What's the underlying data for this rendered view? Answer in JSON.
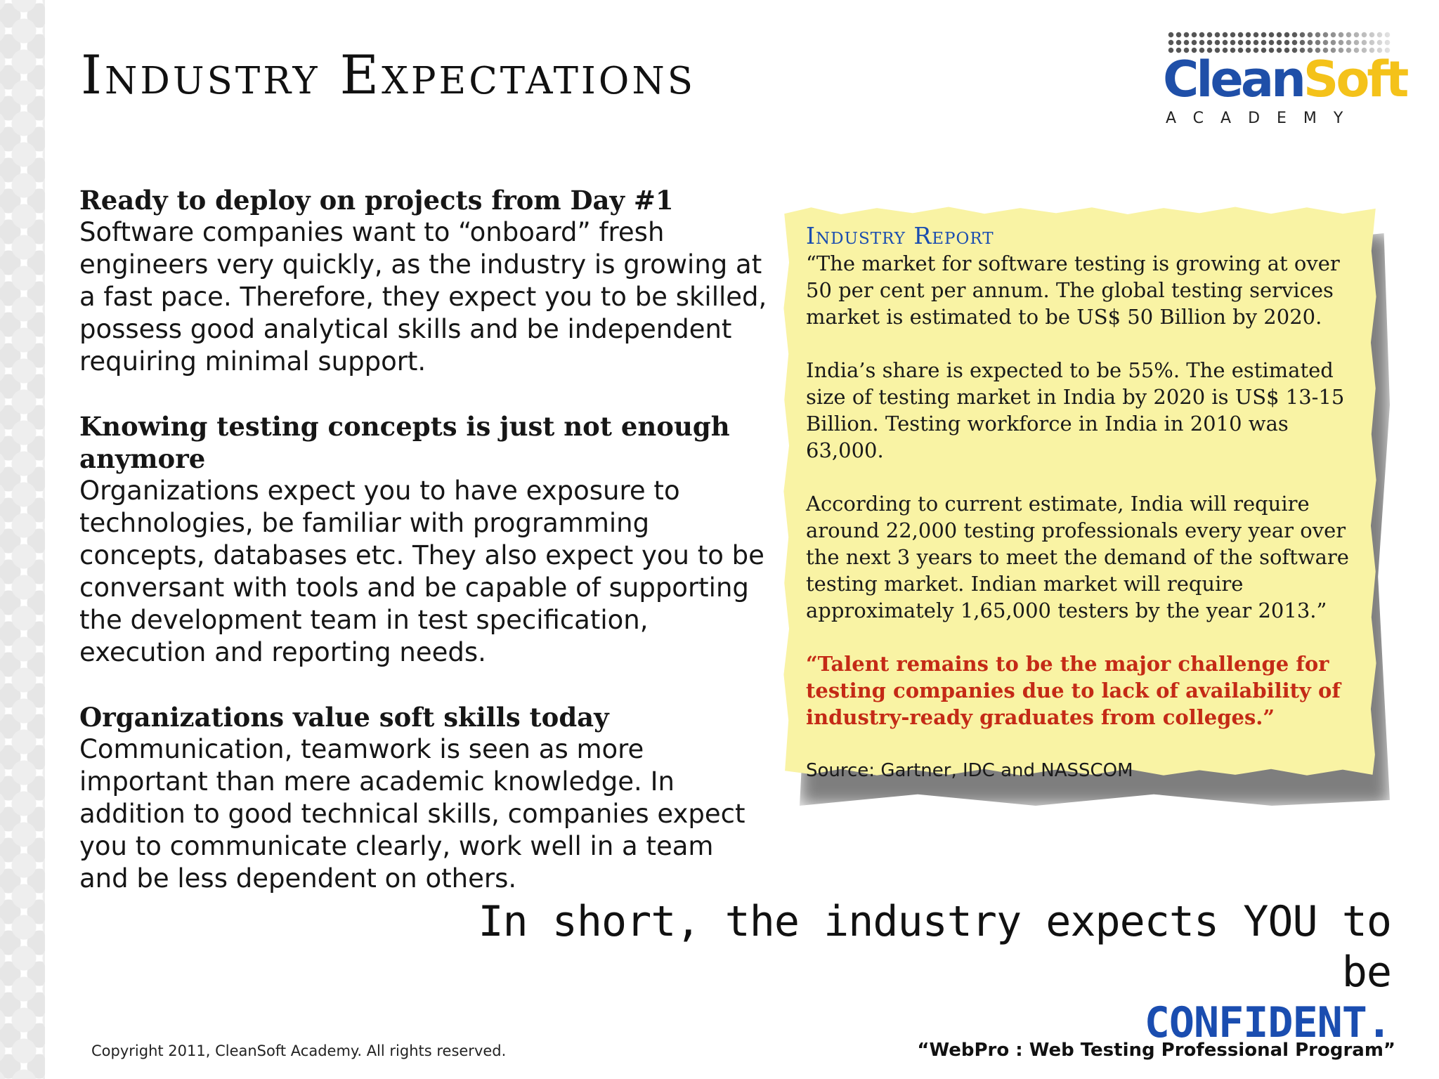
{
  "title": "Industry Expectations",
  "logo": {
    "part1": "Clean",
    "part2": "Soft",
    "sub": "ACADEMY"
  },
  "sections": [
    {
      "heading": "Ready to deploy on projects from Day #1",
      "body": "Software companies want to “onboard” fresh engineers very quickly, as the industry is growing at a fast pace. Therefore, they expect you to be skilled, possess good analytical skills and be independent requiring minimal support."
    },
    {
      "heading": "Knowing testing concepts is just not enough anymore",
      "body": "Organizations expect you to have exposure to technologies, be familiar with programming concepts, databases etc. They also expect you to be conversant with tools and be capable of supporting the development team in test specification, execution and reporting needs."
    },
    {
      "heading": "Organizations value soft skills today",
      "body": "Communication, teamwork is seen as more important than mere academic knowledge. In addition to good technical skills, companies expect you to communicate clearly, work well in a team and be less dependent on others."
    }
  ],
  "report": {
    "title": "Industry Report",
    "paragraphs": [
      "“The market for software testing is growing at over 50 per cent per annum. The global testing services market is estimated to be US$ 50 Billion by 2020.",
      "India’s share is expected to be 55%. The estimated size of testing market in India by 2020 is US$ 13-15 Billion. Testing workforce in India in 2010 was 63,000.",
      "According to current estimate, India will require around 22,000 testing professionals every year over the next 3 years to meet the demand of the software testing market. Indian market will require approximately 1,65,000 testers by the year 2013.”"
    ],
    "quote": "“Talent remains to be the major challenge for testing companies due to lack of availability of industry-ready graduates from colleges.”",
    "source": "Source: Gartner, IDC and NASSCOM"
  },
  "statement": {
    "line1": "In short, the industry expects YOU to be",
    "emphasis": "CONFIDENT."
  },
  "footer": {
    "copyright": "Copyright 2011, CleanSoft Academy.  All rights reserved.",
    "program": "“WebPro : Web Testing Professional Program”"
  },
  "colors": {
    "accent_blue": "#1a4db0",
    "quote_red": "#c42a16",
    "note_yellow": "#f9f3a4",
    "logo_yellow": "#f4c21a"
  }
}
